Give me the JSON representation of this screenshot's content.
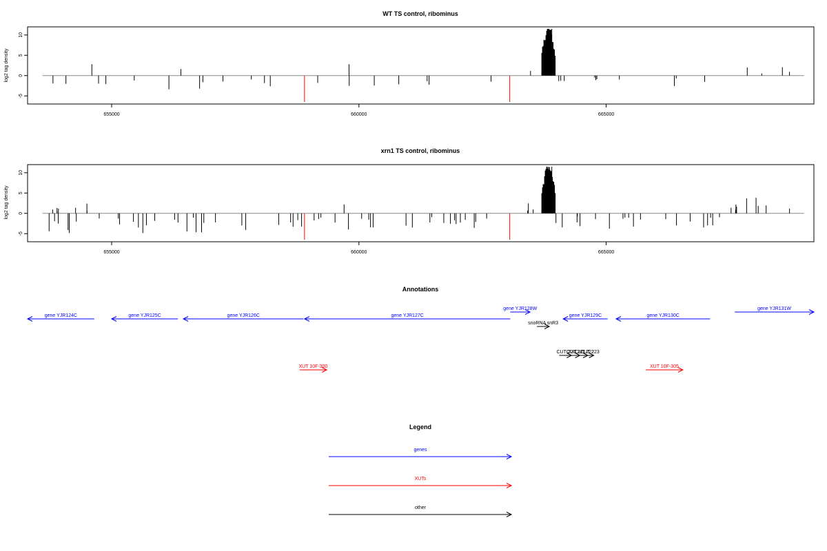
{
  "chart_data": [
    {
      "type": "bar",
      "title": "WT TS control, ribominus",
      "ylabel": "log2 tag density",
      "xlim": [
        653300,
        669200
      ],
      "ylim": [
        -7,
        12
      ],
      "yticks": [
        -5,
        0,
        5,
        10
      ],
      "yticklabels": [
        "-5",
        "0",
        "5",
        "10"
      ],
      "xticks": [
        655000,
        660000,
        665000
      ],
      "xticklabels": [
        "655000",
        "660000",
        "665000"
      ],
      "grid": false,
      "red_markers": [
        {
          "x": 658900,
          "y": -6.5
        },
        {
          "x": 663050,
          "y": -6.5
        }
      ],
      "peaks": [
        {
          "x": 654600,
          "y": 2.8
        },
        {
          "x": 656400,
          "y": 1.6
        },
        {
          "x": 659800,
          "y": 2.8
        },
        {
          "x": 663900,
          "y": 11.5
        }
      ],
      "intervals": [
        {
          "from": 653600,
          "to": 654300,
          "sign": "-",
          "amp": 3
        },
        {
          "from": 654600,
          "to": 655000,
          "sign": "-",
          "amp": 2.5
        },
        {
          "from": 655200,
          "to": 656300,
          "sign": "-",
          "amp": 4
        },
        {
          "from": 656300,
          "to": 657600,
          "sign": "-",
          "amp": 3.5
        },
        {
          "from": 657600,
          "to": 658900,
          "sign": "-",
          "amp": 3.5
        },
        {
          "from": 659000,
          "to": 660500,
          "sign": "-",
          "amp": 3
        },
        {
          "from": 660500,
          "to": 662800,
          "sign": "-",
          "amp": 3.2
        },
        {
          "from": 663400,
          "to": 663650,
          "sign": "+",
          "amp": 2.5
        },
        {
          "from": 663650,
          "to": 664000,
          "sign": "+",
          "amp": 10
        },
        {
          "from": 663950,
          "to": 664400,
          "sign": "-",
          "amp": 2.5
        },
        {
          "from": 664400,
          "to": 665000,
          "sign": "-",
          "amp": 2.5
        },
        {
          "from": 665100,
          "to": 667000,
          "sign": "-",
          "amp": 3
        },
        {
          "from": 667500,
          "to": 669000,
          "sign": "+",
          "amp": 2.5
        }
      ]
    },
    {
      "type": "bar",
      "title": "xrn1 TS control, ribominus",
      "ylabel": "log2 tag density",
      "xlim": [
        653300,
        669200
      ],
      "ylim": [
        -7,
        12
      ],
      "yticks": [
        -5,
        0,
        5,
        10
      ],
      "yticklabels": [
        "-5",
        "0",
        "5",
        "10"
      ],
      "xticks": [
        655000,
        660000,
        665000
      ],
      "xticklabels": [
        "655000",
        "660000",
        "665000"
      ],
      "grid": false,
      "red_markers": [
        {
          "x": 658900,
          "y": -6.5
        },
        {
          "x": 663050,
          "y": -6.5
        }
      ],
      "peaks": [
        {
          "x": 654500,
          "y": 2.4
        },
        {
          "x": 659700,
          "y": 2.2
        },
        {
          "x": 663900,
          "y": 11.5
        }
      ],
      "intervals": [
        {
          "from": 653600,
          "to": 654600,
          "sign": "-",
          "amp": 5
        },
        {
          "from": 653800,
          "to": 654800,
          "sign": "+",
          "amp": 1.5
        },
        {
          "from": 654700,
          "to": 656300,
          "sign": "-",
          "amp": 5
        },
        {
          "from": 656300,
          "to": 657600,
          "sign": "-",
          "amp": 5
        },
        {
          "from": 657600,
          "to": 658900,
          "sign": "-",
          "amp": 4.5
        },
        {
          "from": 659000,
          "to": 660500,
          "sign": "-",
          "amp": 4.5
        },
        {
          "from": 660500,
          "to": 662800,
          "sign": "-",
          "amp": 4.5
        },
        {
          "from": 663400,
          "to": 663650,
          "sign": "+",
          "amp": 2.5
        },
        {
          "from": 663650,
          "to": 664000,
          "sign": "+",
          "amp": 10
        },
        {
          "from": 663950,
          "to": 665000,
          "sign": "-",
          "amp": 3.5
        },
        {
          "from": 665000,
          "to": 667500,
          "sign": "-",
          "amp": 4.5
        },
        {
          "from": 667500,
          "to": 669000,
          "sign": "+",
          "amp": 4
        }
      ]
    }
  ],
  "annotations": {
    "title": "Annotations",
    "items": [
      {
        "label": "gene YJR124C",
        "from": 653300,
        "to": 654650,
        "dir": "left",
        "color": "#0000ff",
        "track": "main"
      },
      {
        "label": "gene YJR125C",
        "from": 655000,
        "to": 656340,
        "dir": "left",
        "color": "#0000ff",
        "track": "main"
      },
      {
        "label": "gene YJR126C",
        "from": 656450,
        "to": 658880,
        "dir": "left",
        "color": "#0000ff",
        "track": "main"
      },
      {
        "label": "gene YJR127C",
        "from": 658900,
        "to": 663060,
        "dir": "left",
        "color": "#0000ff",
        "track": "main"
      },
      {
        "label": "gene YJR128W",
        "from": 663060,
        "to": 663460,
        "dir": "right",
        "color": "#0000ff",
        "track": "upper"
      },
      {
        "label": "gene YJR129C",
        "from": 664130,
        "to": 665030,
        "dir": "left",
        "color": "#0000ff",
        "track": "main"
      },
      {
        "label": "gene YJR130C",
        "from": 665200,
        "to": 667100,
        "dir": "left",
        "color": "#0000ff",
        "track": "main"
      },
      {
        "label": "gene YJR131W",
        "from": 667600,
        "to": 669200,
        "dir": "right",
        "color": "#0000ff",
        "track": "upper"
      },
      {
        "label": "snoRNA snR3",
        "from": 663600,
        "to": 663850,
        "dir": "right",
        "color": "#000000",
        "track": "sno"
      },
      {
        "label": "CUT 220",
        "from": 664050,
        "to": 664300,
        "dir": "right",
        "color": "#000000",
        "track": "cut"
      },
      {
        "label": "CUT 221",
        "from": 664250,
        "to": 664470,
        "dir": "right",
        "color": "#000000",
        "track": "cut"
      },
      {
        "label": "CUT 222",
        "from": 664420,
        "to": 664630,
        "dir": "right",
        "color": "#000000",
        "track": "cut"
      },
      {
        "label": "CUT 223",
        "from": 664530,
        "to": 664750,
        "dir": "right",
        "color": "#000000",
        "track": "cut"
      },
      {
        "label": "XUT 10F-300",
        "from": 658800,
        "to": 659350,
        "dir": "right",
        "color": "#ff0000",
        "track": "xut"
      },
      {
        "label": "XUT 10F-305",
        "from": 665800,
        "to": 666550,
        "dir": "right",
        "color": "#ff0000",
        "track": "xut"
      }
    ]
  },
  "legend": {
    "title": "Legend",
    "items": [
      {
        "label": "genes",
        "color": "#0000ff"
      },
      {
        "label": "XUTs",
        "color": "#ff0000"
      },
      {
        "label": "other",
        "color": "#000000"
      }
    ]
  }
}
